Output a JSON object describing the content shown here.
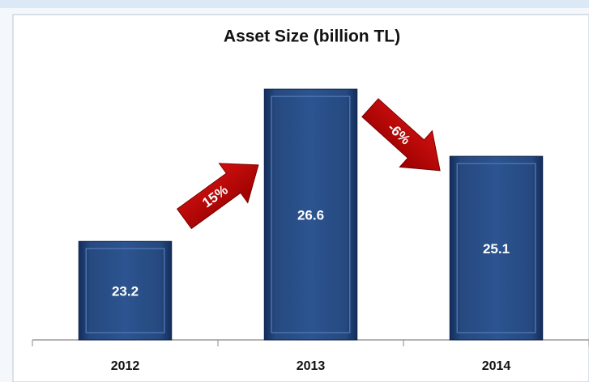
{
  "chart_data": {
    "type": "bar",
    "title": "Asset Size (billion TL)",
    "categories": [
      "2012",
      "2013",
      "2014"
    ],
    "values": [
      23.2,
      26.6,
      25.1
    ],
    "color": "#1f3f78",
    "ylim": [
      21,
      27
    ],
    "annotations": [
      {
        "text": "15%"
      },
      {
        "text": "-6%"
      }
    ]
  }
}
